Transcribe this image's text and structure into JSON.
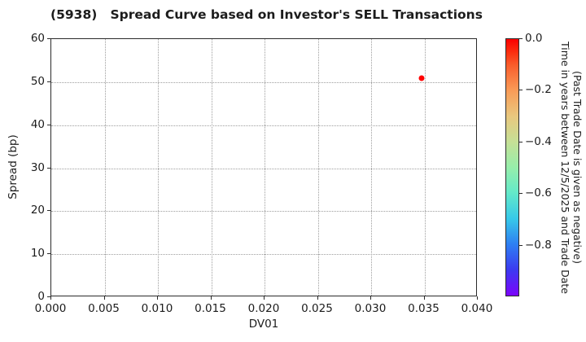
{
  "chart_data": {
    "type": "scatter",
    "title": "(5938)   Spread Curve based on Investor's SELL Transactions",
    "xlabel": "DV01",
    "ylabel": "Spread (bp)",
    "xlim": [
      0.0,
      0.04
    ],
    "ylim": [
      0,
      60
    ],
    "grid": {
      "visible": true,
      "style": "dotted"
    },
    "legend_position": "none",
    "xticks": {
      "values": [
        0.0,
        0.005,
        0.01,
        0.015,
        0.02,
        0.025,
        0.03,
        0.035,
        0.04
      ],
      "labels": [
        "0.000",
        "0.005",
        "0.010",
        "0.015",
        "0.020",
        "0.025",
        "0.030",
        "0.035",
        "0.040"
      ]
    },
    "yticks": {
      "values": [
        0,
        10,
        20,
        30,
        40,
        50,
        60
      ],
      "labels": [
        "0",
        "10",
        "20",
        "30",
        "40",
        "50",
        "60"
      ]
    },
    "points": [
      {
        "x": 0.0347,
        "y": 51,
        "color": "#ff0000",
        "colorbar_value": 0.0
      }
    ],
    "colorbar": {
      "label_line1": "Time in years between 12/5/2025 and Trade Date",
      "label_line2": "(Past Trade Date is given as negative)",
      "range": [
        0.0,
        -1.0
      ],
      "ticks": {
        "values": [
          0.0,
          -0.2,
          -0.4,
          -0.6,
          -0.8
        ],
        "labels": [
          "0.0",
          "−0.2",
          "−0.4",
          "−0.6",
          "−0.8"
        ]
      },
      "gradient": [
        {
          "pos": 0.0,
          "color": "#fb0000"
        },
        {
          "pos": 0.05,
          "color": "#fc2e0e"
        },
        {
          "pos": 0.1,
          "color": "#f95c2b"
        },
        {
          "pos": 0.2,
          "color": "#f99b57"
        },
        {
          "pos": 0.3,
          "color": "#e9c77e"
        },
        {
          "pos": 0.4,
          "color": "#c6e096"
        },
        {
          "pos": 0.5,
          "color": "#97eeab"
        },
        {
          "pos": 0.6,
          "color": "#63e9c9"
        },
        {
          "pos": 0.7,
          "color": "#37c9e9"
        },
        {
          "pos": 0.8,
          "color": "#2e7ff2"
        },
        {
          "pos": 0.9,
          "color": "#3c3af0"
        },
        {
          "pos": 1.0,
          "color": "#7b04fb"
        }
      ]
    }
  }
}
